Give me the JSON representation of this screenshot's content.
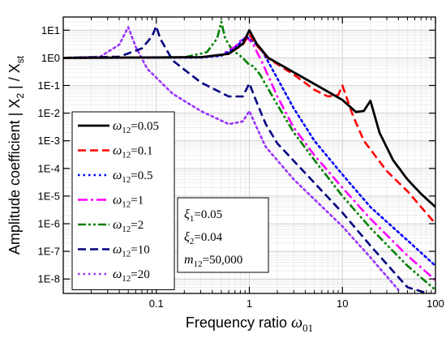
{
  "chart_data": {
    "type": "line",
    "title": "",
    "xlabel_text": "Frequency ratio ",
    "xlabel_symbol": "ω",
    "xlabel_sub": "01",
    "ylabel_text": "Amplitude coefficient ",
    "ylabel_math": "| X",
    "ylabel_sub1": "2",
    "ylabel_mid": " | / X",
    "ylabel_sub2": "st",
    "x_scale": "log",
    "y_scale": "log",
    "xlim": [
      0.01,
      100
    ],
    "ylim": [
      3e-09,
      30
    ],
    "x_ticks": [
      {
        "value": 0.1,
        "label": "0.1"
      },
      {
        "value": 1,
        "label": "1"
      },
      {
        "value": 10,
        "label": "10"
      },
      {
        "value": 100,
        "label": "100"
      }
    ],
    "y_ticks": [
      {
        "value": 10,
        "label": "1E1"
      },
      {
        "value": 1,
        "label": "1E0"
      },
      {
        "value": 0.1,
        "label": "1E-1"
      },
      {
        "value": 0.01,
        "label": "1E-2"
      },
      {
        "value": 0.001,
        "label": "1E-3"
      },
      {
        "value": 0.0001,
        "label": "1E-4"
      },
      {
        "value": 1e-05,
        "label": "1E-5"
      },
      {
        "value": 1e-06,
        "label": "1E-6"
      },
      {
        "value": 1e-07,
        "label": "1E-7"
      },
      {
        "value": 1e-08,
        "label": "1E-8"
      }
    ],
    "grid": true,
    "legend_position": "bottom-left",
    "series": [
      {
        "name_sym": "ω",
        "name_sub": "12",
        "name_val": "=0.05",
        "color": "#000000",
        "style": "solid",
        "width": 2.8,
        "omega12": 0.05,
        "points": [
          [
            0.01,
            1.0
          ],
          [
            0.3,
            1.05
          ],
          [
            0.6,
            1.4
          ],
          [
            0.85,
            3.2
          ],
          [
            1.0,
            10
          ],
          [
            1.2,
            3.2
          ],
          [
            1.6,
            1.0
          ],
          [
            3,
            0.3
          ],
          [
            6,
            0.08
          ],
          [
            10,
            0.03
          ],
          [
            14,
            0.011
          ],
          [
            17,
            0.012
          ],
          [
            20,
            0.028
          ],
          [
            21.5,
            0.012
          ],
          [
            25,
            0.002
          ],
          [
            35,
            0.0002
          ],
          [
            50,
            4e-05
          ],
          [
            70,
            1.2e-05
          ],
          [
            100,
            4e-06
          ]
        ]
      },
      {
        "name_sym": "ω",
        "name_sub": "12",
        "name_val": "=0.1",
        "color": "#ff0000",
        "style": "dash",
        "width": 2.6,
        "omega12": 0.1,
        "points": [
          [
            0.01,
            1.0
          ],
          [
            0.3,
            1.05
          ],
          [
            0.6,
            1.4
          ],
          [
            0.85,
            3.0
          ],
          [
            1.0,
            7
          ],
          [
            1.2,
            2.8
          ],
          [
            1.6,
            0.95
          ],
          [
            3,
            0.25
          ],
          [
            5,
            0.07
          ],
          [
            7,
            0.04
          ],
          [
            9,
            0.045
          ],
          [
            10,
            0.1
          ],
          [
            11,
            0.04
          ],
          [
            13,
            0.008
          ],
          [
            17,
            0.001
          ],
          [
            30,
            8e-05
          ],
          [
            50,
            1.5e-05
          ],
          [
            100,
            1e-06
          ]
        ]
      },
      {
        "name_sym": "ω",
        "name_sub": "12",
        "name_val": "=0.5",
        "color": "#0000ff",
        "style": "dot",
        "width": 2.6,
        "omega12": 0.5,
        "points": [
          [
            0.01,
            1.0
          ],
          [
            0.3,
            1.02
          ],
          [
            0.5,
            1.2
          ],
          [
            0.7,
            2.2
          ],
          [
            0.85,
            4.5
          ],
          [
            0.95,
            5.5
          ],
          [
            1.1,
            4.0
          ],
          [
            1.4,
            1.6
          ],
          [
            2,
            0.18
          ],
          [
            3,
            0.015
          ],
          [
            5,
            0.001
          ],
          [
            10,
            6e-05
          ],
          [
            20,
            4e-06
          ],
          [
            50,
            2.5e-07
          ],
          [
            100,
            3e-08
          ]
        ]
      },
      {
        "name_sym": "ω",
        "name_sub": "12",
        "name_val": "=1",
        "color": "#ff00ff",
        "style": "dashdot",
        "width": 2.6,
        "omega12": 1,
        "points": [
          [
            0.01,
            1.0
          ],
          [
            0.3,
            1.05
          ],
          [
            0.5,
            1.3
          ],
          [
            0.7,
            2.5
          ],
          [
            0.85,
            5.2
          ],
          [
            0.95,
            5.4
          ],
          [
            1.1,
            3.0
          ],
          [
            1.4,
            0.6
          ],
          [
            2,
            0.04
          ],
          [
            3,
            0.003
          ],
          [
            5,
            0.0003
          ],
          [
            10,
            2e-05
          ],
          [
            20,
            1.5e-06
          ],
          [
            50,
            7e-08
          ],
          [
            100,
            9e-09
          ]
        ]
      },
      {
        "name_sym": "ω",
        "name_sub": "12",
        "name_val": "=2",
        "color": "#008000",
        "style": "dashdotdot",
        "width": 2.6,
        "omega12": 2,
        "points": [
          [
            0.01,
            1.0
          ],
          [
            0.2,
            1.05
          ],
          [
            0.35,
            1.6
          ],
          [
            0.45,
            5
          ],
          [
            0.5,
            20
          ],
          [
            0.55,
            5
          ],
          [
            0.65,
            2.0
          ],
          [
            0.85,
            1.0
          ],
          [
            1.0,
            0.55
          ],
          [
            1.1,
            0.5
          ],
          [
            1.3,
            0.25
          ],
          [
            2,
            0.02
          ],
          [
            3,
            0.002
          ],
          [
            5,
            0.0002
          ],
          [
            10,
            1e-05
          ],
          [
            20,
            7e-07
          ],
          [
            50,
            3e-08
          ],
          [
            100,
            4e-09
          ]
        ]
      },
      {
        "name_sym": "ω",
        "name_sub": "12",
        "name_val": "=10",
        "color": "#000080",
        "style": "dash",
        "width": 2.6,
        "omega12": 10,
        "points": [
          [
            0.01,
            1.0
          ],
          [
            0.04,
            1.1
          ],
          [
            0.07,
            2.2
          ],
          [
            0.09,
            6
          ],
          [
            0.1,
            14
          ],
          [
            0.11,
            5
          ],
          [
            0.15,
            0.8
          ],
          [
            0.3,
            0.13
          ],
          [
            0.6,
            0.04
          ],
          [
            0.85,
            0.04
          ],
          [
            1.0,
            0.12
          ],
          [
            1.15,
            0.035
          ],
          [
            1.5,
            0.004
          ],
          [
            2,
            0.0008
          ],
          [
            5,
            3e-05
          ],
          [
            10,
            2.5e-06
          ],
          [
            20,
            1.6e-07
          ],
          [
            50,
            5e-09
          ],
          [
            100,
            2.5e-09
          ]
        ]
      },
      {
        "name_sym": "ω",
        "name_sub": "12",
        "name_val": "=20",
        "color": "#9933ff",
        "style": "dot",
        "width": 2.6,
        "omega12": 20,
        "points": [
          [
            0.01,
            1.0
          ],
          [
            0.025,
            1.1
          ],
          [
            0.04,
            3
          ],
          [
            0.05,
            13
          ],
          [
            0.06,
            2.5
          ],
          [
            0.08,
            0.4
          ],
          [
            0.15,
            0.05
          ],
          [
            0.3,
            0.012
          ],
          [
            0.6,
            0.004
          ],
          [
            0.85,
            0.005
          ],
          [
            1.0,
            0.012
          ],
          [
            1.2,
            0.003
          ],
          [
            1.5,
            0.0006
          ],
          [
            3,
            4e-05
          ],
          [
            10,
            8e-07
          ],
          [
            20,
            6e-08
          ],
          [
            40,
            4e-09
          ]
        ]
      }
    ],
    "annotations": [
      {
        "sym": "ξ",
        "sub": "1",
        "val": "=0.05"
      },
      {
        "sym": "ξ",
        "sub": "2",
        "val": "=0.04"
      },
      {
        "sym": "m",
        "sub": "12",
        "val": "=50,000"
      }
    ]
  }
}
